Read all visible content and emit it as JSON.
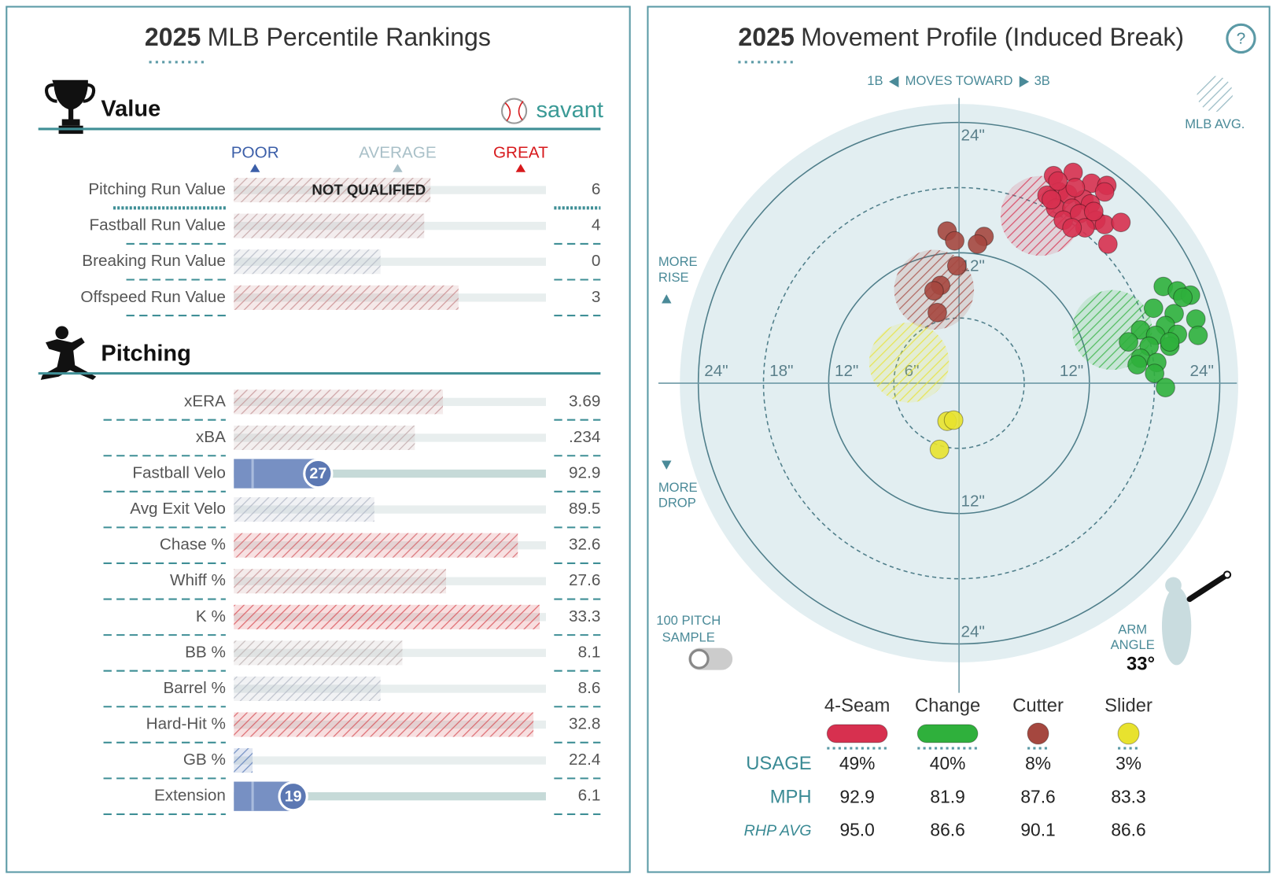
{
  "percentile_rankings": {
    "title_year": "2025",
    "title": "MLB Percentile Rankings",
    "brand": "savant",
    "scale_labels": [
      "POOR",
      "AVERAGE",
      "GREAT"
    ],
    "sections": [
      {
        "name": "Value",
        "rows": [
          {
            "label": "Pitching Run Value",
            "value": "6",
            "percentile": 63,
            "qualified": false,
            "note": "NOT QUALIFIED"
          },
          {
            "label": "Fastball Run Value",
            "value": "4",
            "percentile": 61,
            "qualified": false
          },
          {
            "label": "Breaking Run Value",
            "value": "0",
            "percentile": 47,
            "qualified": false
          },
          {
            "label": "Offspeed Run Value",
            "value": "3",
            "percentile": 72,
            "qualified": false
          }
        ]
      },
      {
        "name": "Pitching",
        "rows": [
          {
            "label": "xERA",
            "value": "3.69",
            "percentile": 67,
            "qualified": false
          },
          {
            "label": "xBA",
            "value": ".234",
            "percentile": 58,
            "qualified": false
          },
          {
            "label": "Fastball Velo",
            "value": "92.9",
            "percentile": 27,
            "qualified": true
          },
          {
            "label": "Avg Exit Velo",
            "value": "89.5",
            "percentile": 45,
            "qualified": false
          },
          {
            "label": "Chase %",
            "value": "32.6",
            "percentile": 91,
            "qualified": false
          },
          {
            "label": "Whiff %",
            "value": "27.6",
            "percentile": 68,
            "qualified": false
          },
          {
            "label": "K %",
            "value": "33.3",
            "percentile": 98,
            "qualified": false
          },
          {
            "label": "BB %",
            "value": "8.1",
            "percentile": 54,
            "qualified": false
          },
          {
            "label": "Barrel %",
            "value": "8.6",
            "percentile": 47,
            "qualified": false
          },
          {
            "label": "Hard-Hit %",
            "value": "32.8",
            "percentile": 96,
            "qualified": false
          },
          {
            "label": "GB %",
            "value": "22.4",
            "percentile": 6,
            "qualified": false
          },
          {
            "label": "Extension",
            "value": "6.1",
            "percentile": 19,
            "qualified": true
          }
        ]
      }
    ]
  },
  "movement_profile": {
    "title_year": "2025",
    "title": "Movement Profile (Induced Break)",
    "help": "?",
    "direction": {
      "left": "1B",
      "center": "MOVES TOWARD",
      "right": "3B"
    },
    "rise_label": [
      "MORE",
      "RISE"
    ],
    "drop_label": [
      "MORE",
      "DROP"
    ],
    "mlb_avg_label": "MLB AVG.",
    "sample_label": [
      "100 PITCH",
      "SAMPLE"
    ],
    "arm_angle": {
      "label": [
        "ARM",
        "ANGLE"
      ],
      "value": 33,
      "value_label": "33°"
    },
    "rlim": 25.7,
    "rings": [
      {
        "value": 6,
        "label": "6\""
      },
      {
        "value": 12,
        "label": "12\""
      },
      {
        "value": 18,
        "label": "18\""
      },
      {
        "value": 24,
        "label": "24\""
      }
    ],
    "row_labels": {
      "usage": "USAGE",
      "mph": "MPH",
      "rhp_avg": "RHP AVG"
    },
    "pitches": [
      {
        "name": "4-Seam",
        "color": "#d7304f",
        "usage": "49%",
        "mph": "92.9",
        "rhp_avg": "95.0",
        "mlb_avg": [
          7.5,
          15.4
        ],
        "h": [
          8.7,
          10.5,
          12.2,
          13.6,
          9.2,
          8.1,
          10.0,
          11.5,
          13.4,
          8.9,
          10.4,
          12.1,
          9.6,
          11.1,
          12.6,
          8.5,
          11.6,
          13.4,
          14.9,
          13.7,
          10.7,
          9.1,
          12.4,
          10.4
        ],
        "v": [
          19.1,
          19.4,
          18.4,
          18.2,
          17.6,
          17.3,
          17.4,
          16.9,
          17.6,
          16.1,
          16.1,
          16.5,
          15.0,
          15.6,
          15.0,
          16.9,
          14.3,
          14.6,
          14.8,
          12.8,
          18.0,
          18.6,
          15.8,
          14.3
        ]
      },
      {
        "name": "Change",
        "color": "#2fb03c",
        "usage": "40%",
        "mph": "81.9",
        "rhp_avg": "86.6",
        "mlb_avg": [
          14.1,
          4.9
        ],
        "h": [
          18.8,
          20.1,
          21.3,
          17.9,
          19.8,
          21.8,
          19.0,
          16.7,
          18.1,
          20.1,
          22.0,
          15.6,
          17.5,
          19.4,
          16.7,
          18.2,
          16.4,
          18.0,
          19.0,
          20.6,
          19.4
        ],
        "v": [
          8.9,
          8.5,
          8.1,
          6.9,
          6.4,
          5.9,
          5.3,
          4.9,
          4.4,
          4.5,
          4.4,
          3.8,
          3.4,
          3.4,
          2.3,
          1.9,
          1.7,
          0.9,
          -0.4,
          7.9,
          3.8
        ]
      },
      {
        "name": "Cutter",
        "color": "#a5473f",
        "usage": "8%",
        "mph": "87.6",
        "rhp_avg": "90.1",
        "mlb_avg": [
          -2.3,
          8.6
        ],
        "h": [
          -1.1,
          -0.4,
          2.3,
          1.7,
          -0.2,
          -1.7,
          -2.3,
          -2.0
        ],
        "v": [
          14.0,
          13.1,
          13.5,
          12.8,
          10.8,
          9.0,
          8.5,
          6.5
        ]
      },
      {
        "name": "Slider",
        "color": "#e8e22e",
        "usage": "3%",
        "mph": "83.3",
        "rhp_avg": "86.6",
        "mlb_avg": [
          -4.6,
          1.9
        ],
        "h": [
          -1.1,
          -0.5,
          -1.8
        ],
        "v": [
          -3.5,
          -3.4,
          -6.1
        ]
      }
    ]
  }
}
